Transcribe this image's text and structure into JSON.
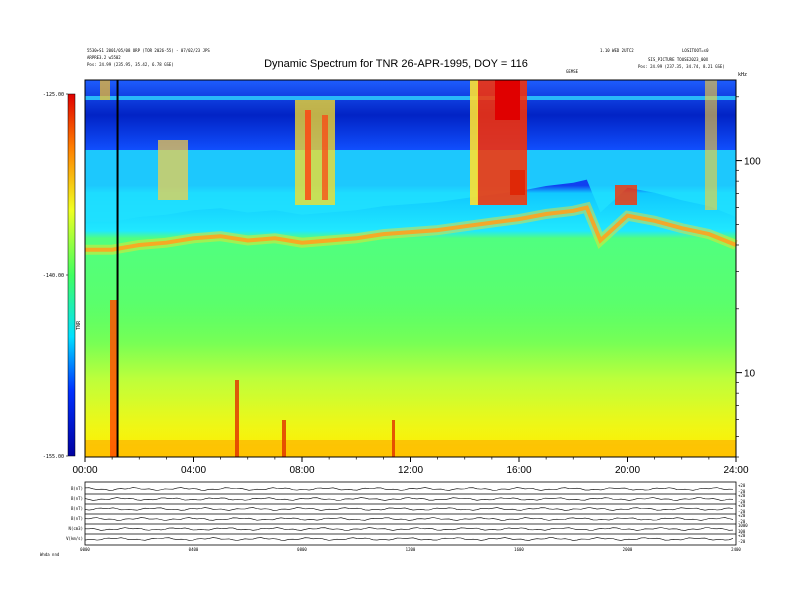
{
  "header": {
    "title": "Dynamic Spectrum for TNR 26-APR-1995, DOY = 116",
    "top_left_line1": "5530+S1 2001/05/08 ORP (TOR 2026-55) - 07/02/23 JPS",
    "top_left_line2": "ARPRE3.2 w5502",
    "top_left_pos_label": "Pos:",
    "top_left_pos_value": "24.99 (235.95, 35.42, 6.78 GSE)",
    "top_right_line1": "1.10 WED 2UTC2",
    "top_right_line2": "LOSITOOT=s0",
    "top_right_line3": "SIS_PICTURE TOUSE2023_00X",
    "top_right_pos_label": "Pos:",
    "top_right_pos_value": "24.99 (237.35, 34.74, 8.21 GSE)",
    "center_small_label": "GEMSE"
  },
  "chart_data": {
    "type": "heatmap",
    "title": "Dynamic Spectrum for TNR 26-APR-1995, DOY = 116",
    "xlabel": "",
    "ylabel": "",
    "x_tick_labels": [
      "00:00",
      "04:00",
      "08:00",
      "12:00",
      "16:00",
      "20:00",
      "24:00"
    ],
    "x_ticks_hours": [
      0,
      4,
      8,
      12,
      16,
      20,
      24
    ],
    "xlim": [
      0,
      24
    ],
    "y_scale": "log",
    "y_unit": "kHz",
    "y_tick_labels": [
      "10",
      "100"
    ],
    "y_ticks": [
      10,
      100
    ],
    "ylim": [
      4,
      240
    ],
    "colorbar": {
      "label": "TNR",
      "tick_labels": [
        "-125.00",
        "-140.00",
        "-155.00"
      ],
      "ticks": [
        -125,
        -140,
        -155
      ],
      "range": [
        -155,
        -125
      ],
      "colors": [
        "#0000a0",
        "#0030ff",
        "#00e0ff",
        "#40ff60",
        "#f0ff20",
        "#ff8000",
        "#e00000"
      ]
    },
    "plasma_line_hours": [
      0,
      1,
      2,
      3,
      4,
      5,
      6,
      7,
      8,
      9,
      10,
      11,
      12,
      13,
      14,
      15,
      16,
      17,
      18,
      18.5,
      19,
      20,
      21,
      22,
      23,
      24
    ],
    "plasma_line_khz": [
      38,
      38,
      40,
      41,
      43,
      44,
      42,
      43,
      41,
      42,
      43,
      45,
      46,
      47,
      49,
      51,
      53,
      56,
      58,
      60,
      42,
      55,
      52,
      48,
      45,
      40
    ],
    "cursor_hour": 1.2
  },
  "bottom_panels": {
    "labels": [
      "B(nT)",
      "B(nT)",
      "B(nT)",
      "B(nT)",
      "N(cm3)",
      "V(km/s)"
    ],
    "right_values": [
      [
        "+20",
        "-20"
      ],
      [
        "+20",
        "-20"
      ],
      [
        "+20",
        "-20"
      ],
      [
        "+20",
        "-20"
      ],
      [
        "1000",
        "100"
      ],
      [
        "+20",
        "-20"
      ]
    ],
    "time_labels": [
      "0000",
      "0400",
      "0800",
      "1200",
      "1600",
      "2000",
      "2400"
    ],
    "footer_left": "Wnda  nnd"
  },
  "colors": {
    "background": "#ffffff",
    "axis": "#000000",
    "cursor": "#000000"
  }
}
